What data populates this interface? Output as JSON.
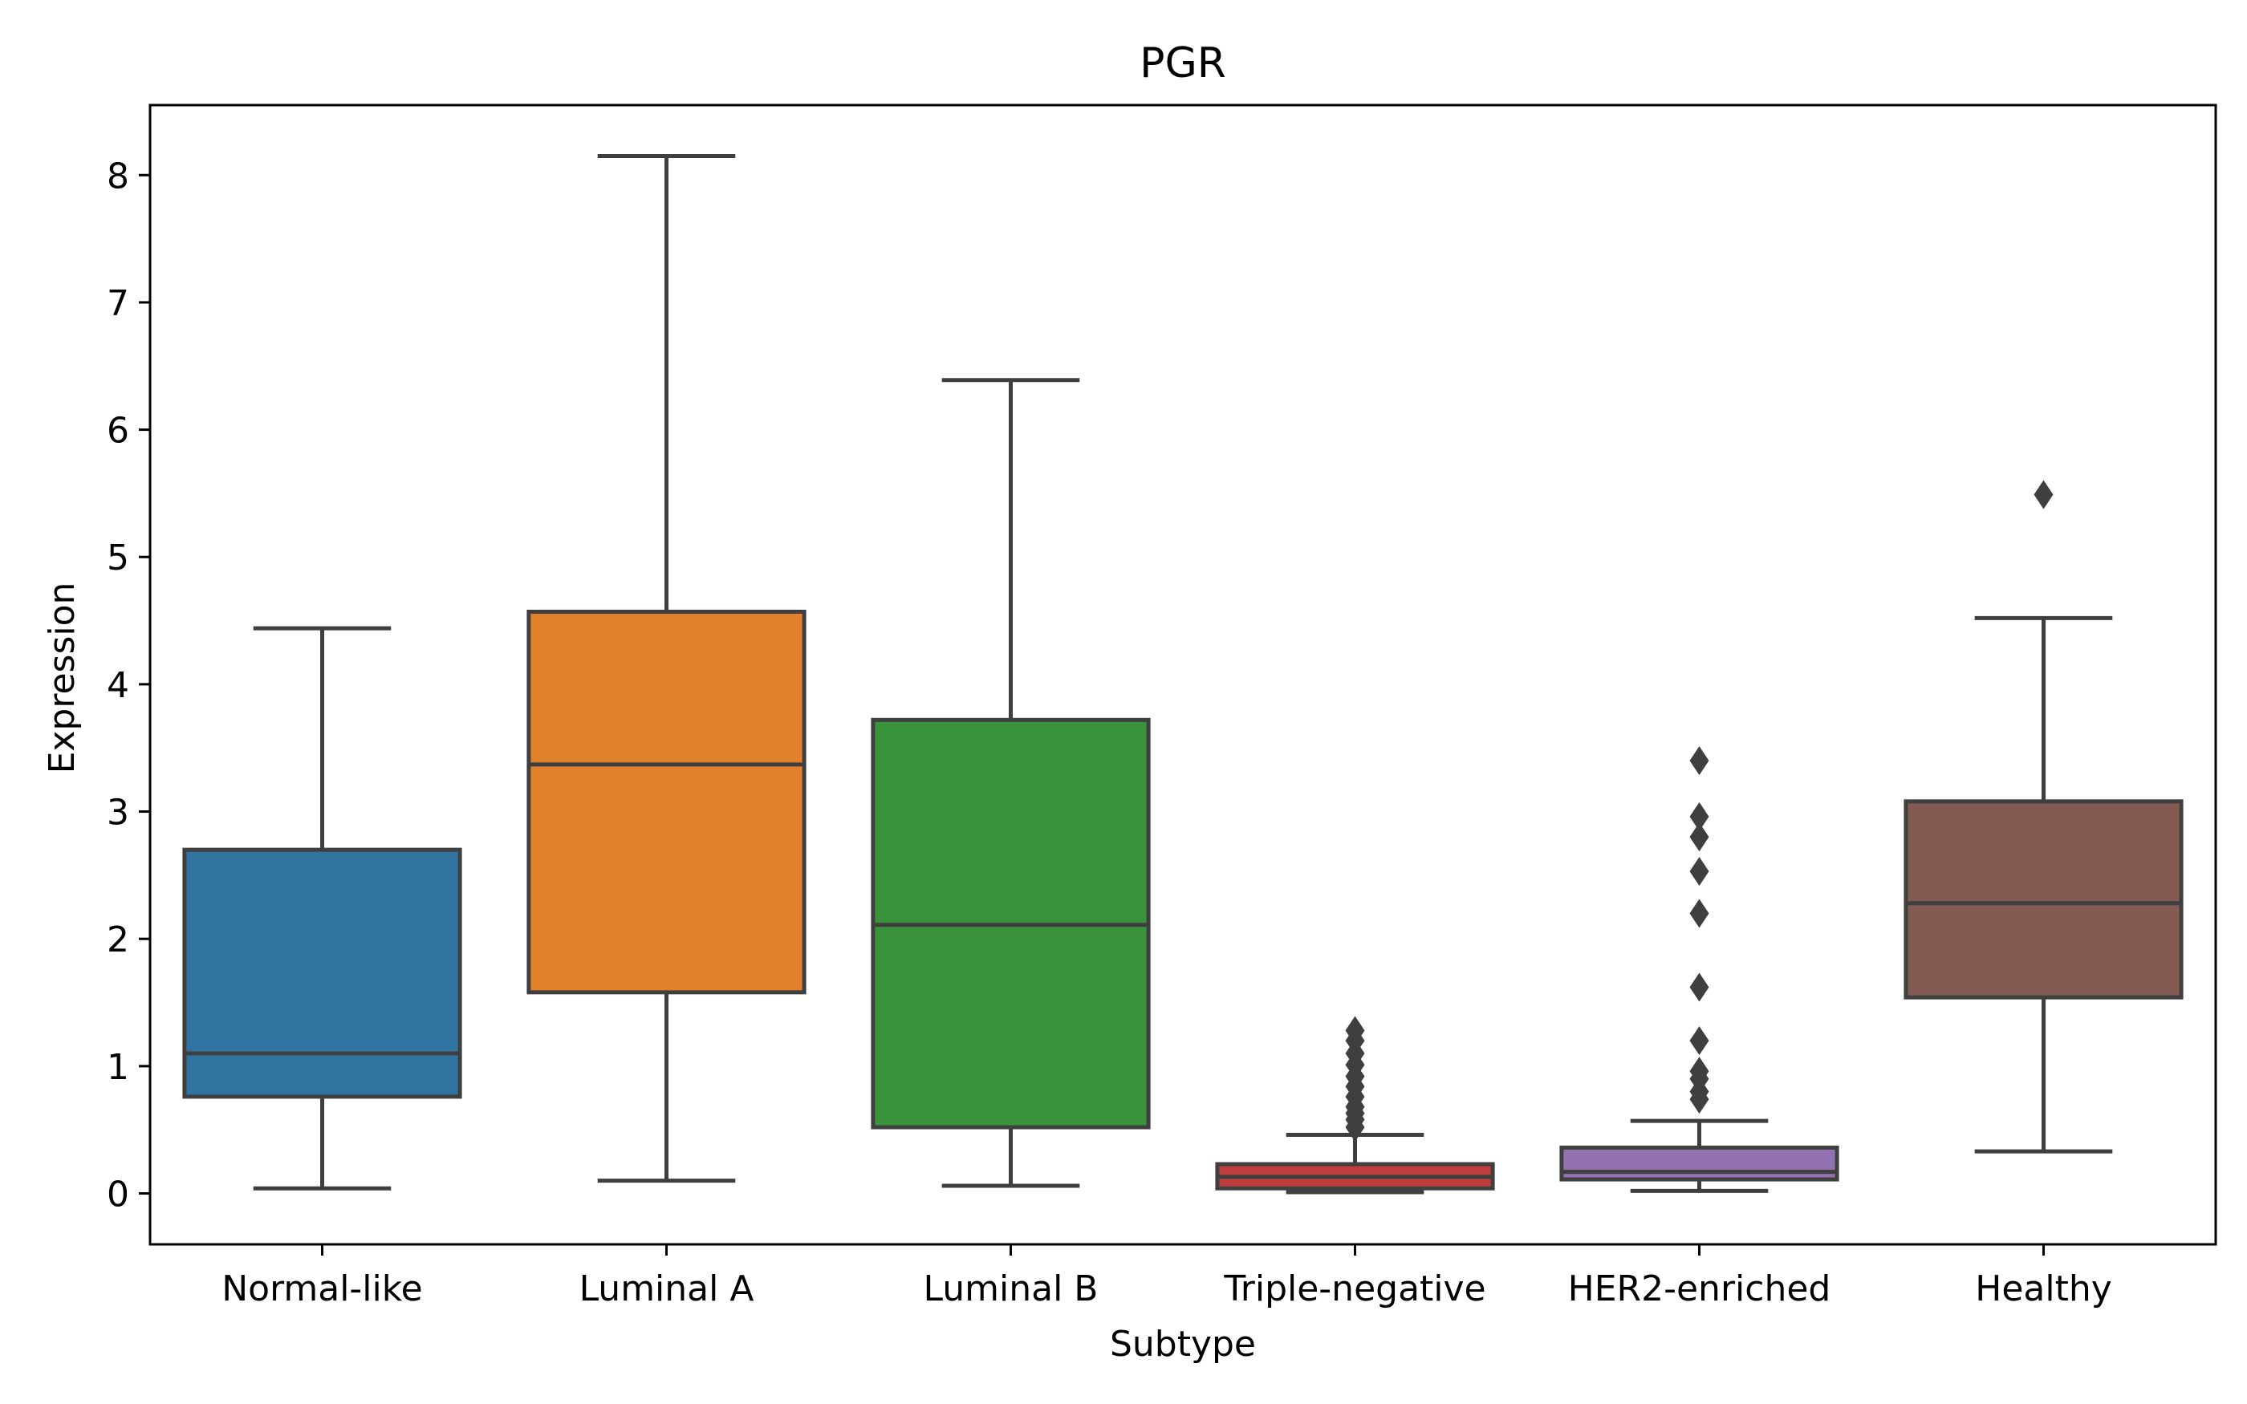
{
  "chart_data": {
    "type": "box",
    "title": "PGR",
    "xlabel": "Subtype",
    "ylabel": "Expression",
    "ylim": [
      -0.4,
      8.55
    ],
    "yticks": [
      0,
      1,
      2,
      3,
      4,
      5,
      6,
      7,
      8
    ],
    "grid": false,
    "categories": [
      "Normal-like",
      "Luminal A",
      "Luminal B",
      "Triple-negative",
      "HER2-enriched",
      "Healthy"
    ],
    "boxes": [
      {
        "category": "Normal-like",
        "color": "#3274a1",
        "whisker_low": 0.04,
        "q1": 0.76,
        "median": 1.1,
        "q3": 2.7,
        "whisker_high": 4.44,
        "outliers": []
      },
      {
        "category": "Luminal A",
        "color": "#e1812c",
        "whisker_low": 0.1,
        "q1": 1.58,
        "median": 3.37,
        "q3": 4.57,
        "whisker_high": 8.15,
        "outliers": []
      },
      {
        "category": "Luminal B",
        "color": "#3a923a",
        "whisker_low": 0.06,
        "q1": 0.52,
        "median": 2.11,
        "q3": 3.72,
        "whisker_high": 6.39,
        "outliers": []
      },
      {
        "category": "Triple-negative",
        "color": "#c03d3e",
        "whisker_low": 0.01,
        "q1": 0.04,
        "median": 0.13,
        "q3": 0.23,
        "whisker_high": 0.46,
        "outliers": [
          0.52,
          0.58,
          0.63,
          0.68,
          0.76,
          0.84,
          0.92,
          1.01,
          1.1,
          1.2,
          1.28
        ]
      },
      {
        "category": "HER2-enriched",
        "color": "#9372b2",
        "whisker_low": 0.02,
        "q1": 0.11,
        "median": 0.17,
        "q3": 0.36,
        "whisker_high": 0.57,
        "outliers": [
          0.74,
          0.8,
          0.9,
          0.96,
          1.2,
          1.62,
          2.2,
          2.53,
          2.8,
          2.96,
          3.4
        ]
      },
      {
        "category": "Healthy",
        "color": "#845b53",
        "whisker_low": 0.33,
        "q1": 1.54,
        "median": 2.28,
        "q3": 3.08,
        "whisker_high": 4.52,
        "outliers": [
          5.49
        ]
      }
    ]
  }
}
